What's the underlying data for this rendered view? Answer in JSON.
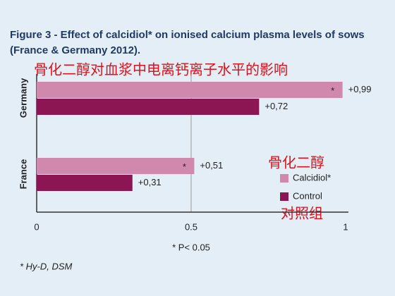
{
  "chart_data": {
    "type": "bar",
    "orientation": "horizontal",
    "title": "Figure 3 - Effect of calcidiol* on ionised calcium plasma levels of sows",
    "subtitle": "(France & Germany 2012).",
    "annotations": [
      "骨化二醇对血浆中电离钙离子水平的影响",
      "骨化二醇",
      "对照组"
    ],
    "categories": [
      "Germany",
      "France"
    ],
    "series": [
      {
        "name": "Calcidiol*",
        "color": "#d088ac",
        "values": [
          0.99,
          0.51
        ],
        "value_labels": [
          "+0,99",
          "+0,51"
        ],
        "significance_marker": "*"
      },
      {
        "name": "Control",
        "color": "#8c1653",
        "values": [
          0.72,
          0.31
        ],
        "value_labels": [
          "+0,72",
          "+0,31"
        ]
      }
    ],
    "xlim": [
      0,
      1
    ],
    "xticks": [
      0,
      0.5,
      1
    ],
    "xlabel": "* P< 0.05",
    "footnote": "* Hy-D, DSM",
    "grid": true
  }
}
